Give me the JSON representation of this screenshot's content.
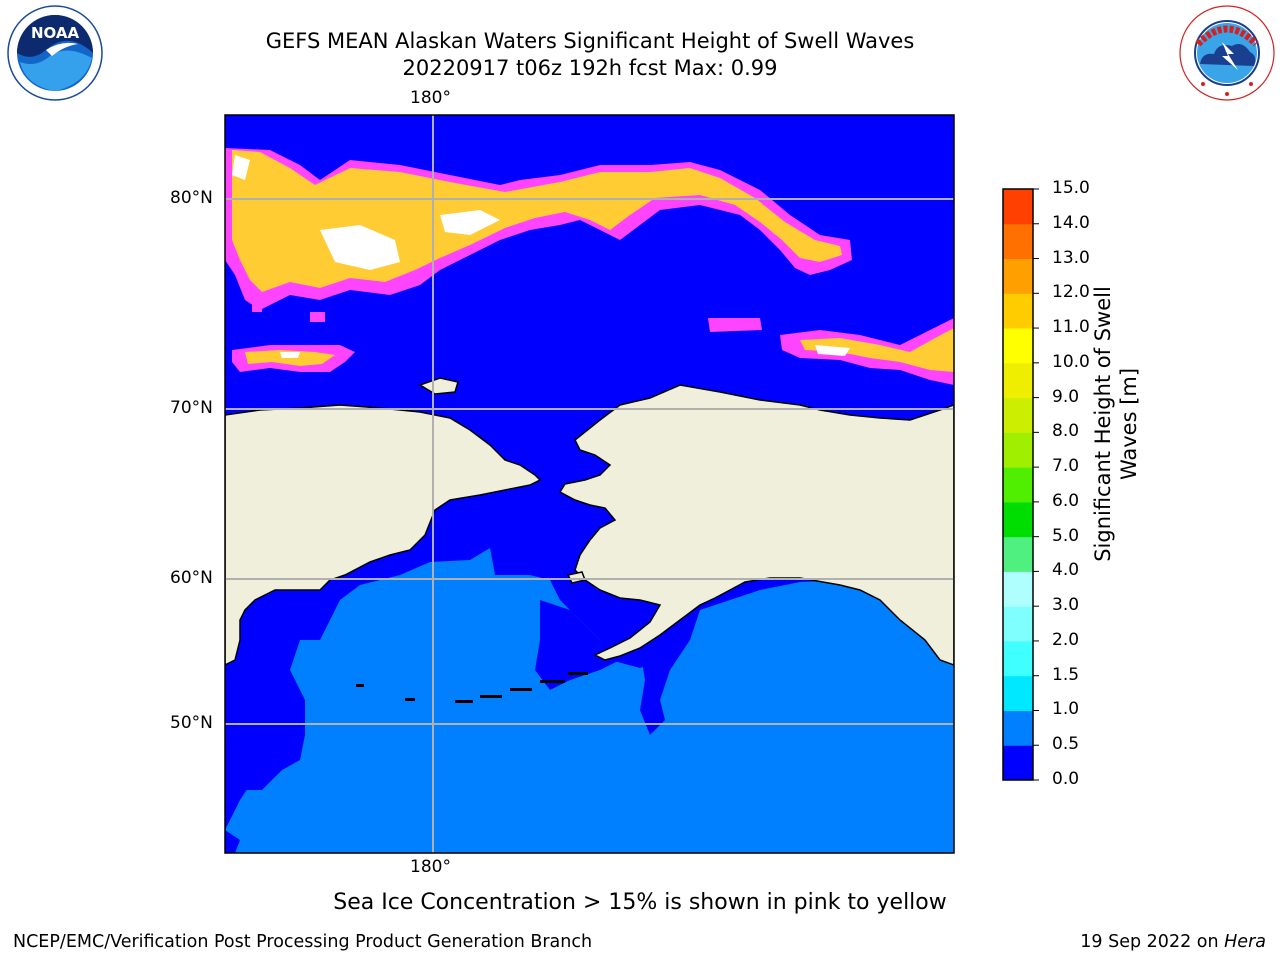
{
  "header": {
    "title_line1": "GEFS MEAN Alaskan Waters Significant Height of Swell Waves",
    "title_line2": "20220917 t06z 192h fcst   Max: 0.99"
  },
  "logos": {
    "left": "NOAA",
    "left_ring_text": "NATIONAL OCEANIC AND ATMOSPHERIC ADMINISTRATION · U.S. DEPARTMENT OF COMMERCE",
    "right_ring_text": "NATIONAL WEATHER SERVICE"
  },
  "map": {
    "lon_label_top": "180°",
    "lon_label_bottom": "180°",
    "lat_labels": [
      "80°N",
      "70°N",
      "60°N",
      "50°N"
    ],
    "colors": {
      "ocean_low": "#0000ff",
      "ocean_mid": "#0080ff",
      "land": "#efefdc",
      "ice_pink": "#ff44ff",
      "ice_yellow": "#ffcc33"
    }
  },
  "colorbar": {
    "label_line1": "Significant Height of Swell",
    "label_line2": "Waves [m]",
    "ticks": [
      "0.0",
      "0.5",
      "1.0",
      "1.5",
      "2.0",
      "3.0",
      "4.0",
      "5.0",
      "6.0",
      "7.0",
      "8.0",
      "9.0",
      "10.0",
      "11.0",
      "12.0",
      "13.0",
      "14.0",
      "15.0"
    ],
    "colors": [
      "#0000ff",
      "#0080ff",
      "#00e8ff",
      "#40ffff",
      "#80ffff",
      "#b0ffff",
      "#50f080",
      "#00dd00",
      "#50ee00",
      "#a0ee00",
      "#ccee00",
      "#eeee00",
      "#ffff00",
      "#ffcc00",
      "#ffa000",
      "#ff7000",
      "#ff4000",
      "#ff0000"
    ]
  },
  "footer": {
    "note": "Sea Ice Concentration > 15% is shown in pink to yellow",
    "left": "NCEP/EMC/Verification Post Processing Product Generation Branch",
    "right_date": "19 Sep 2022 on ",
    "right_host": "Hera"
  }
}
